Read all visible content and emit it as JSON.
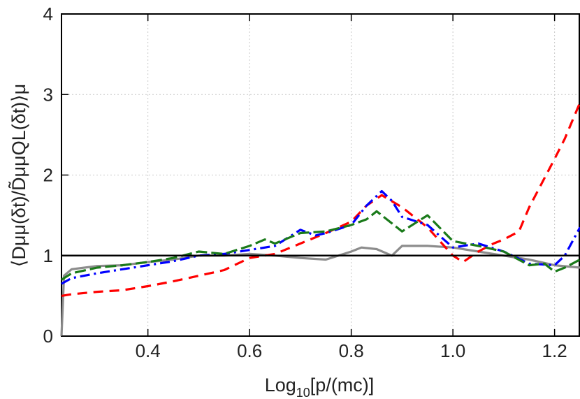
{
  "chart_data": {
    "type": "line",
    "title": "",
    "xlabel": "Log10[p/(mc)]",
    "xlabel_parts": {
      "base": "Log",
      "sub": "10",
      "rest": "[p/(mc)]"
    },
    "ylabel": "⟨Dμμ(δt)/D̃μμQL(δt)⟩μ",
    "xlim": [
      0.23,
      1.25
    ],
    "ylim": [
      0,
      4
    ],
    "xticks": [
      0.4,
      0.6,
      0.8,
      1.0,
      1.2
    ],
    "xtick_labels": [
      "0.4",
      "0.6",
      "0.8",
      "1.0",
      "1.2"
    ],
    "yticks": [
      0,
      1,
      2,
      3,
      4
    ],
    "ytick_labels": [
      "0",
      "1",
      "2",
      "3",
      "4"
    ],
    "grid": true,
    "reference_line": {
      "y": 1,
      "color": "#000000"
    },
    "series": [
      {
        "name": "gray-solid",
        "color": "#8c8c8c",
        "dash": "none",
        "x": [
          0.23,
          0.235,
          0.25,
          0.3,
          0.35,
          0.4,
          0.45,
          0.5,
          0.55,
          0.6,
          0.65,
          0.7,
          0.75,
          0.8,
          0.82,
          0.85,
          0.88,
          0.9,
          0.95,
          1.0,
          1.05,
          1.1,
          1.15,
          1.2,
          1.25
        ],
        "values": [
          0.0,
          0.75,
          0.83,
          0.87,
          0.88,
          0.92,
          0.95,
          1.0,
          1.0,
          1.02,
          1.0,
          0.97,
          0.95,
          1.05,
          1.1,
          1.08,
          1.0,
          1.12,
          1.12,
          1.1,
          1.05,
          1.0,
          0.95,
          0.88,
          0.85
        ]
      },
      {
        "name": "red-dashed",
        "color": "#ff0000",
        "dash": "long",
        "x": [
          0.23,
          0.25,
          0.3,
          0.35,
          0.4,
          0.45,
          0.5,
          0.55,
          0.6,
          0.65,
          0.7,
          0.75,
          0.8,
          0.83,
          0.86,
          0.9,
          0.95,
          1.0,
          1.02,
          1.05,
          1.08,
          1.1,
          1.13,
          1.15,
          1.2,
          1.22,
          1.25
        ],
        "values": [
          0.5,
          0.52,
          0.55,
          0.57,
          0.62,
          0.68,
          0.75,
          0.82,
          0.97,
          1.02,
          1.15,
          1.28,
          1.42,
          1.62,
          1.75,
          1.6,
          1.35,
          1.0,
          0.92,
          1.05,
          1.15,
          1.2,
          1.3,
          1.6,
          2.2,
          2.45,
          2.9
        ]
      },
      {
        "name": "blue-dashdot",
        "color": "#0000ff",
        "dash": "dashdot",
        "x": [
          0.23,
          0.25,
          0.3,
          0.35,
          0.4,
          0.45,
          0.5,
          0.55,
          0.6,
          0.65,
          0.7,
          0.73,
          0.75,
          0.8,
          0.83,
          0.86,
          0.88,
          0.9,
          0.95,
          1.0,
          1.05,
          1.1,
          1.15,
          1.2,
          1.22,
          1.25
        ],
        "values": [
          0.65,
          0.72,
          0.78,
          0.83,
          0.88,
          0.93,
          1.0,
          1.02,
          1.07,
          1.12,
          1.32,
          1.25,
          1.28,
          1.38,
          1.62,
          1.8,
          1.68,
          1.48,
          1.38,
          1.1,
          1.15,
          1.05,
          0.9,
          0.88,
          1.0,
          1.35
        ]
      },
      {
        "name": "green-dashed",
        "color": "#1a7a1a",
        "dash": "medium",
        "x": [
          0.23,
          0.25,
          0.3,
          0.35,
          0.4,
          0.45,
          0.5,
          0.55,
          0.6,
          0.63,
          0.65,
          0.7,
          0.75,
          0.8,
          0.83,
          0.85,
          0.9,
          0.95,
          1.0,
          1.05,
          1.1,
          1.15,
          1.18,
          1.2,
          1.22,
          1.25
        ],
        "values": [
          0.7,
          0.78,
          0.85,
          0.88,
          0.92,
          0.97,
          1.05,
          1.02,
          1.12,
          1.2,
          1.15,
          1.28,
          1.3,
          1.38,
          1.45,
          1.55,
          1.3,
          1.5,
          1.18,
          1.12,
          1.05,
          0.88,
          0.9,
          0.8,
          0.85,
          0.95
        ]
      }
    ]
  }
}
